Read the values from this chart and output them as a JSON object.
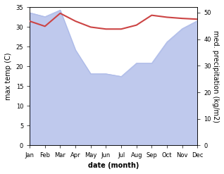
{
  "months": [
    "Jan",
    "Feb",
    "Mar",
    "Apr",
    "May",
    "Jun",
    "Jul",
    "Aug",
    "Sep",
    "Oct",
    "Nov",
    "Dec"
  ],
  "temp": [
    31.5,
    30.2,
    33.5,
    31.5,
    30.0,
    29.5,
    29.5,
    30.5,
    33.0,
    32.5,
    32.2,
    32.0
  ],
  "precip_right": [
    50,
    48.5,
    51,
    36,
    27,
    27,
    26,
    31,
    31,
    39,
    44,
    47
  ],
  "temp_color": "#cc4444",
  "precip_color": "#aab8e8",
  "left_ylim": [
    0,
    35
  ],
  "right_ylim": [
    0,
    52
  ],
  "left_yticks": [
    0,
    5,
    10,
    15,
    20,
    25,
    30,
    35
  ],
  "right_yticks": [
    0,
    10,
    20,
    30,
    40,
    50
  ],
  "xlabel": "date (month)",
  "ylabel_left": "max temp (C)",
  "ylabel_right": "med. precipitation (kg/m2)",
  "bg_color": "#ffffff",
  "temp_lw": 1.5
}
